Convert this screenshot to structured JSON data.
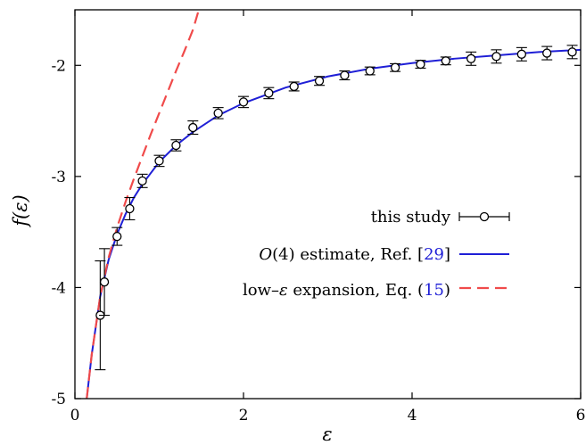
{
  "chart_data": {
    "type": "line",
    "xlabel": "ε",
    "ylabel": "f(ε)",
    "xlim": [
      0,
      6
    ],
    "ylim": [
      -5,
      -1.5
    ],
    "xticks": [
      0,
      2,
      4,
      6
    ],
    "xtick_labels": [
      "0",
      "2",
      "4",
      "6"
    ],
    "yticks": [
      -5,
      -4,
      -3,
      -2
    ],
    "ytick_labels": [
      "-5",
      "-4",
      "-3",
      "-2"
    ],
    "grid": false,
    "legend_position": "center-right",
    "series": [
      {
        "name": "this study",
        "kind": "scatter-errorbar",
        "color": "#000000",
        "points": [
          {
            "x": 0.3,
            "y": -4.25,
            "err_low": 0.49,
            "err_high": 0.49
          },
          {
            "x": 0.35,
            "y": -3.95,
            "err_low": 0.3,
            "err_high": 0.3
          },
          {
            "x": 0.5,
            "y": -3.54,
            "err_low": 0.08,
            "err_high": 0.08
          },
          {
            "x": 0.65,
            "y": -3.29,
            "err_low": 0.1,
            "err_high": 0.1
          },
          {
            "x": 0.8,
            "y": -3.04,
            "err_low": 0.06,
            "err_high": 0.06
          },
          {
            "x": 1.0,
            "y": -2.86,
            "err_low": 0.05,
            "err_high": 0.05
          },
          {
            "x": 1.2,
            "y": -2.72,
            "err_low": 0.05,
            "err_high": 0.05
          },
          {
            "x": 1.4,
            "y": -2.56,
            "err_low": 0.06,
            "err_high": 0.06
          },
          {
            "x": 1.7,
            "y": -2.43,
            "err_low": 0.05,
            "err_high": 0.05
          },
          {
            "x": 2.0,
            "y": -2.33,
            "err_low": 0.05,
            "err_high": 0.05
          },
          {
            "x": 2.3,
            "y": -2.25,
            "err_low": 0.05,
            "err_high": 0.05
          },
          {
            "x": 2.6,
            "y": -2.19,
            "err_low": 0.04,
            "err_high": 0.04
          },
          {
            "x": 2.9,
            "y": -2.14,
            "err_low": 0.04,
            "err_high": 0.04
          },
          {
            "x": 3.2,
            "y": -2.09,
            "err_low": 0.04,
            "err_high": 0.04
          },
          {
            "x": 3.5,
            "y": -2.05,
            "err_low": 0.035,
            "err_high": 0.035
          },
          {
            "x": 3.8,
            "y": -2.02,
            "err_low": 0.035,
            "err_high": 0.035
          },
          {
            "x": 4.1,
            "y": -1.99,
            "err_low": 0.035,
            "err_high": 0.035
          },
          {
            "x": 4.4,
            "y": -1.96,
            "err_low": 0.035,
            "err_high": 0.035
          },
          {
            "x": 4.7,
            "y": -1.94,
            "err_low": 0.06,
            "err_high": 0.06
          },
          {
            "x": 5.0,
            "y": -1.92,
            "err_low": 0.06,
            "err_high": 0.06
          },
          {
            "x": 5.3,
            "y": -1.9,
            "err_low": 0.06,
            "err_high": 0.06
          },
          {
            "x": 5.6,
            "y": -1.89,
            "err_low": 0.06,
            "err_high": 0.06
          },
          {
            "x": 5.9,
            "y": -1.88,
            "err_low": 0.06,
            "err_high": 0.06
          }
        ]
      },
      {
        "name": "O(4) estimate, Ref. [29]",
        "kind": "line",
        "color": "#1f1fd6",
        "x": [
          0.14,
          0.2,
          0.3,
          0.4,
          0.5,
          0.6,
          0.7,
          0.8,
          1.0,
          1.2,
          1.4,
          1.7,
          2.0,
          2.5,
          3.0,
          3.5,
          4.0,
          4.5,
          5.0,
          5.5,
          6.0
        ],
        "y": [
          -5.0,
          -4.6,
          -4.08,
          -3.75,
          -3.52,
          -3.34,
          -3.19,
          -3.07,
          -2.87,
          -2.72,
          -2.6,
          -2.45,
          -2.34,
          -2.2,
          -2.1,
          -2.03,
          -1.98,
          -1.94,
          -1.91,
          -1.88,
          -1.86
        ]
      },
      {
        "name": "low–ε expansion, Eq. (15)",
        "kind": "dashed-line",
        "color": "#f04a4a",
        "x": [
          0.14,
          0.2,
          0.3,
          0.4,
          0.5,
          0.6,
          0.7,
          0.8,
          0.9,
          1.0,
          1.1,
          1.2,
          1.3,
          1.4,
          1.47
        ],
        "y": [
          -5.0,
          -4.6,
          -4.08,
          -3.73,
          -3.46,
          -3.23,
          -3.02,
          -2.82,
          -2.62,
          -2.43,
          -2.24,
          -2.05,
          -1.87,
          -1.68,
          -1.5
        ]
      }
    ],
    "legend": {
      "entry1_text": "this study",
      "entry2_math": "O",
      "entry2_arg": "(4)",
      "entry2_text": " estimate, Ref. [",
      "entry2_ref": "29",
      "entry2_close": "]",
      "entry3_pre": "low–",
      "entry3_eps": "ε",
      "entry3_text": " expansion, Eq. (",
      "entry3_ref": "15",
      "entry3_close": ")"
    }
  }
}
